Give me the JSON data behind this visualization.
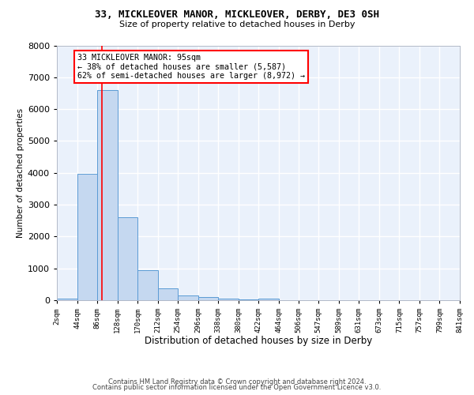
{
  "title1": "33, MICKLEOVER MANOR, MICKLEOVER, DERBY, DE3 0SH",
  "title2": "Size of property relative to detached houses in Derby",
  "xlabel": "Distribution of detached houses by size in Derby",
  "ylabel": "Number of detached properties",
  "bar_color": "#c5d8f0",
  "bar_edge_color": "#5b9bd5",
  "background_color": "#eaf1fb",
  "grid_color": "#ffffff",
  "bin_edges": [
    2,
    44,
    86,
    128,
    170,
    212,
    254,
    296,
    338,
    380,
    422,
    464,
    506,
    547,
    589,
    631,
    673,
    715,
    757,
    799,
    841
  ],
  "bin_labels": [
    "2sqm",
    "44sqm",
    "86sqm",
    "128sqm",
    "170sqm",
    "212sqm",
    "254sqm",
    "296sqm",
    "338sqm",
    "380sqm",
    "422sqm",
    "464sqm",
    "506sqm",
    "547sqm",
    "589sqm",
    "631sqm",
    "673sqm",
    "715sqm",
    "757sqm",
    "799sqm",
    "841sqm"
  ],
  "bar_heights": [
    50,
    3980,
    6590,
    2600,
    950,
    370,
    150,
    100,
    50,
    30,
    40,
    0,
    0,
    0,
    0,
    0,
    0,
    0,
    0,
    0
  ],
  "red_line_x": 95,
  "annotation_line1": "33 MICKLEOVER MANOR: 95sqm",
  "annotation_line2": "← 38% of detached houses are smaller (5,587)",
  "annotation_line3": "62% of semi-detached houses are larger (8,972) →",
  "ylim_max": 8000,
  "yticks": [
    0,
    1000,
    2000,
    3000,
    4000,
    5000,
    6000,
    7000,
    8000
  ],
  "footer1": "Contains HM Land Registry data © Crown copyright and database right 2024.",
  "footer2": "Contains public sector information licensed under the Open Government Licence v3.0."
}
